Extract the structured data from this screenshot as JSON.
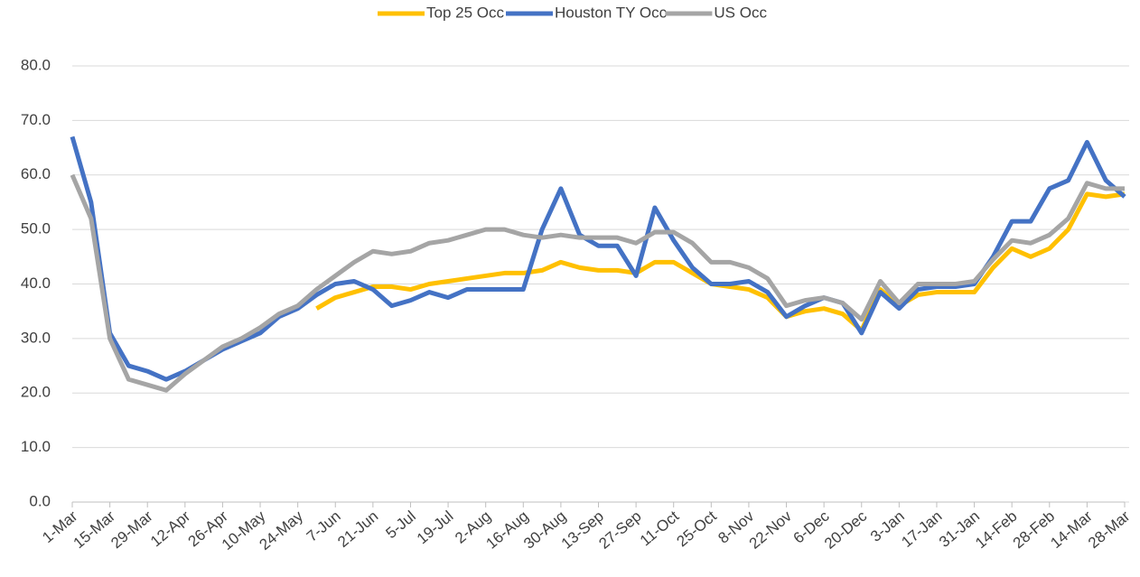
{
  "chart_data": {
    "type": "line",
    "categories": [
      "1-Mar",
      null,
      "15-Mar",
      null,
      "29-Mar",
      null,
      "12-Apr",
      null,
      "26-Apr",
      null,
      "10-May",
      null,
      "24-May",
      null,
      "7-Jun",
      null,
      "21-Jun",
      null,
      "5-Jul",
      null,
      "19-Jul",
      null,
      "2-Aug",
      null,
      "16-Aug",
      null,
      "30-Aug",
      null,
      "13-Sep",
      null,
      "27-Sep",
      null,
      "11-Oct",
      null,
      "25-Oct",
      null,
      "8-Nov",
      null,
      "22-Nov",
      null,
      "6-Dec",
      null,
      "20-Dec",
      null,
      "3-Jan",
      null,
      "17-Jan",
      null,
      "31-Jan",
      null,
      "14-Feb",
      null,
      "28-Feb",
      null,
      "14-Mar",
      null,
      "28-Mar"
    ],
    "series": [
      {
        "name": "Top 25 Occ",
        "color": "#ffc000",
        "values": [
          null,
          null,
          null,
          null,
          null,
          null,
          null,
          null,
          null,
          null,
          null,
          null,
          null,
          35.5,
          37.5,
          38.5,
          39.5,
          39.5,
          39,
          40,
          40.5,
          41,
          41.5,
          42,
          42,
          42.5,
          44,
          43,
          42.5,
          42.5,
          42,
          44,
          44,
          42,
          40,
          39.5,
          39,
          37.5,
          34,
          35,
          35.5,
          34.5,
          31.5,
          39,
          36,
          38,
          38.5,
          38.5,
          38.5,
          43,
          46.5,
          45,
          46.5,
          50,
          56.5,
          56,
          56.5
        ]
      },
      {
        "name": "Houston TY Occ",
        "color": "#4472c4",
        "values": [
          67,
          55,
          31,
          25,
          24,
          22.5,
          24,
          26,
          28,
          29.5,
          31,
          34,
          35.5,
          38,
          40,
          40.5,
          39,
          36,
          37,
          38.5,
          37.5,
          39,
          39,
          39,
          39,
          50,
          57.5,
          49,
          47,
          47,
          41.5,
          54,
          48,
          43,
          40,
          40,
          40.5,
          38.5,
          34,
          36,
          37.5,
          36.5,
          31,
          38.5,
          35.5,
          39,
          39.5,
          39.5,
          40,
          45,
          51.5,
          51.5,
          57.5,
          59,
          66,
          59,
          56
        ]
      },
      {
        "name": "US Occ",
        "color": "#a5a5a5",
        "values": [
          60,
          52,
          30,
          22.5,
          21.5,
          20.5,
          23.5,
          26,
          28.5,
          30,
          32,
          34.5,
          36,
          39,
          41.5,
          44,
          46,
          45.5,
          46,
          47.5,
          48,
          49,
          50,
          50,
          49,
          48.5,
          49,
          48.5,
          48.5,
          48.5,
          47.5,
          49.5,
          49.5,
          47.5,
          44,
          44,
          43,
          41,
          36,
          37,
          37.5,
          36.5,
          33.5,
          40.5,
          36.5,
          40,
          40,
          40,
          40.5,
          44.5,
          48,
          47.5,
          49,
          52,
          58.5,
          57.5,
          57.5
        ]
      }
    ],
    "ylim": [
      0,
      80
    ],
    "yticks": [
      {
        "value": 0,
        "label": "0.0"
      },
      {
        "value": 10,
        "label": "10.0"
      },
      {
        "value": 20,
        "label": "20.0"
      },
      {
        "value": 30,
        "label": "30.0"
      },
      {
        "value": 40,
        "label": "40.0"
      },
      {
        "value": 50,
        "label": "50.0"
      },
      {
        "value": 60,
        "label": "60.0"
      },
      {
        "value": 70,
        "label": "70.0"
      },
      {
        "value": 80,
        "label": "80.0"
      }
    ],
    "grid": true,
    "legend": "top"
  }
}
